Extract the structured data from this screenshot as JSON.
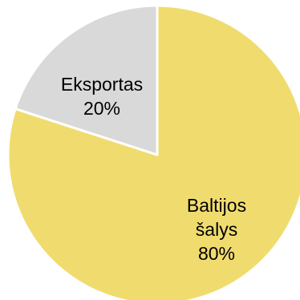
{
  "chart_data": {
    "type": "pie",
    "title": "",
    "legend": "none",
    "slices": [
      {
        "name": "Baltijos šalys",
        "label_lines": [
          "Baltijos",
          "šalys"
        ],
        "value": 80,
        "value_label": "80%",
        "color": "#F0DC6E"
      },
      {
        "name": "Eksportas",
        "label_lines": [
          "Eksportas"
        ],
        "value": 20,
        "value_label": "20%",
        "color": "#D9D9D9"
      }
    ],
    "start_angle": "12 o'clock",
    "direction": "clockwise",
    "separator_color": "#FFFFFF"
  }
}
